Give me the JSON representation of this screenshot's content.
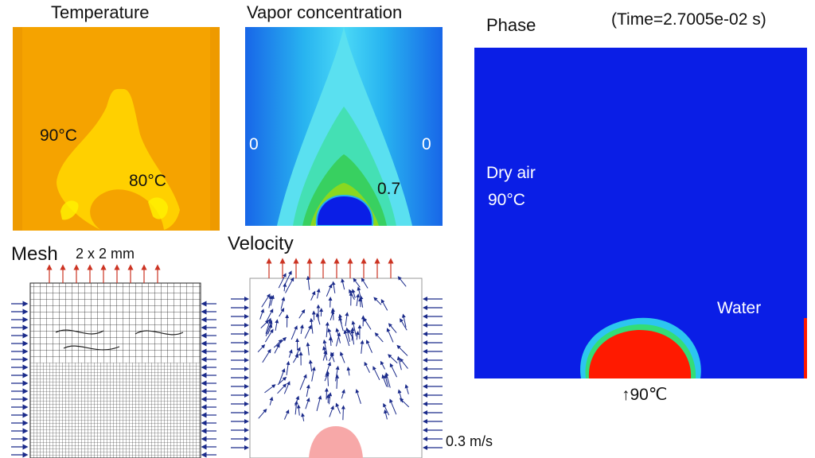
{
  "temperature": {
    "title": "Temperature",
    "label_outer": "90°C",
    "label_inner": "80°C"
  },
  "vapor": {
    "title": "Vapor concentration",
    "label_left": "0",
    "label_right": "0",
    "label_center": "0.7"
  },
  "mesh": {
    "title": "Mesh",
    "size_label": "2 x 2 mm"
  },
  "velocity": {
    "title": "Velocity",
    "scale_label": "0.3 m/s"
  },
  "phase": {
    "title": "Phase",
    "time_label": "(Time=2.7005e-02 s)",
    "air_label": "Dry air",
    "air_temp": "90°C",
    "water_label": "Water",
    "bottom_temp": "↑90℃"
  },
  "colors": {
    "blue": "#0a1ee6",
    "red": "#ff1a00",
    "orange": "#f6a800",
    "yellow": "#ffd200",
    "arrow_blue": "#1a2a8a",
    "arrow_red": "#cc3322"
  }
}
